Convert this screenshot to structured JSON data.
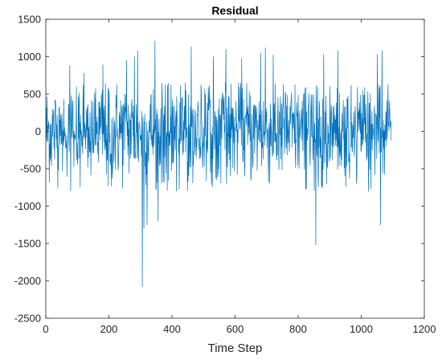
{
  "chart_data": {
    "type": "line",
    "title": "Residual",
    "xlabel": "Time Step",
    "ylabel": "",
    "xlim": [
      0,
      1200
    ],
    "ylim": [
      -2500,
      1500
    ],
    "xticks": [
      "0",
      "200",
      "400",
      "600",
      "800",
      "1000",
      "1200"
    ],
    "yticks": [
      "-2500",
      "-2000",
      "-1500",
      "-1000",
      "-500",
      "0",
      "500",
      "1000",
      "1500"
    ],
    "grid": false,
    "series": [
      {
        "color": "#0072bd",
        "n_points": 1095,
        "mean": 0,
        "typical_range": [
          -800,
          650
        ],
        "min": {
          "x": 305,
          "y": -2080
        },
        "max": {
          "x": 345,
          "y": 1210
        },
        "notable_spikes": [
          {
            "x": 75,
            "y": 880
          },
          {
            "x": 120,
            "y": 780
          },
          {
            "x": 180,
            "y": 890
          },
          {
            "x": 255,
            "y": 950
          },
          {
            "x": 280,
            "y": 1000
          },
          {
            "x": 290,
            "y": 1080
          },
          {
            "x": 305,
            "y": -2080
          },
          {
            "x": 310,
            "y": -1300
          },
          {
            "x": 320,
            "y": -1250
          },
          {
            "x": 345,
            "y": 1210
          },
          {
            "x": 355,
            "y": -1200
          },
          {
            "x": 460,
            "y": 1130
          },
          {
            "x": 530,
            "y": 1000
          },
          {
            "x": 570,
            "y": 1100
          },
          {
            "x": 620,
            "y": 980
          },
          {
            "x": 680,
            "y": 1050
          },
          {
            "x": 695,
            "y": 1120
          },
          {
            "x": 720,
            "y": 1020
          },
          {
            "x": 855,
            "y": -1520
          },
          {
            "x": 880,
            "y": 1030
          },
          {
            "x": 925,
            "y": 1080
          },
          {
            "x": 1050,
            "y": 1030
          },
          {
            "x": 1065,
            "y": 1080
          },
          {
            "x": 1060,
            "y": -1250
          }
        ]
      }
    ]
  }
}
